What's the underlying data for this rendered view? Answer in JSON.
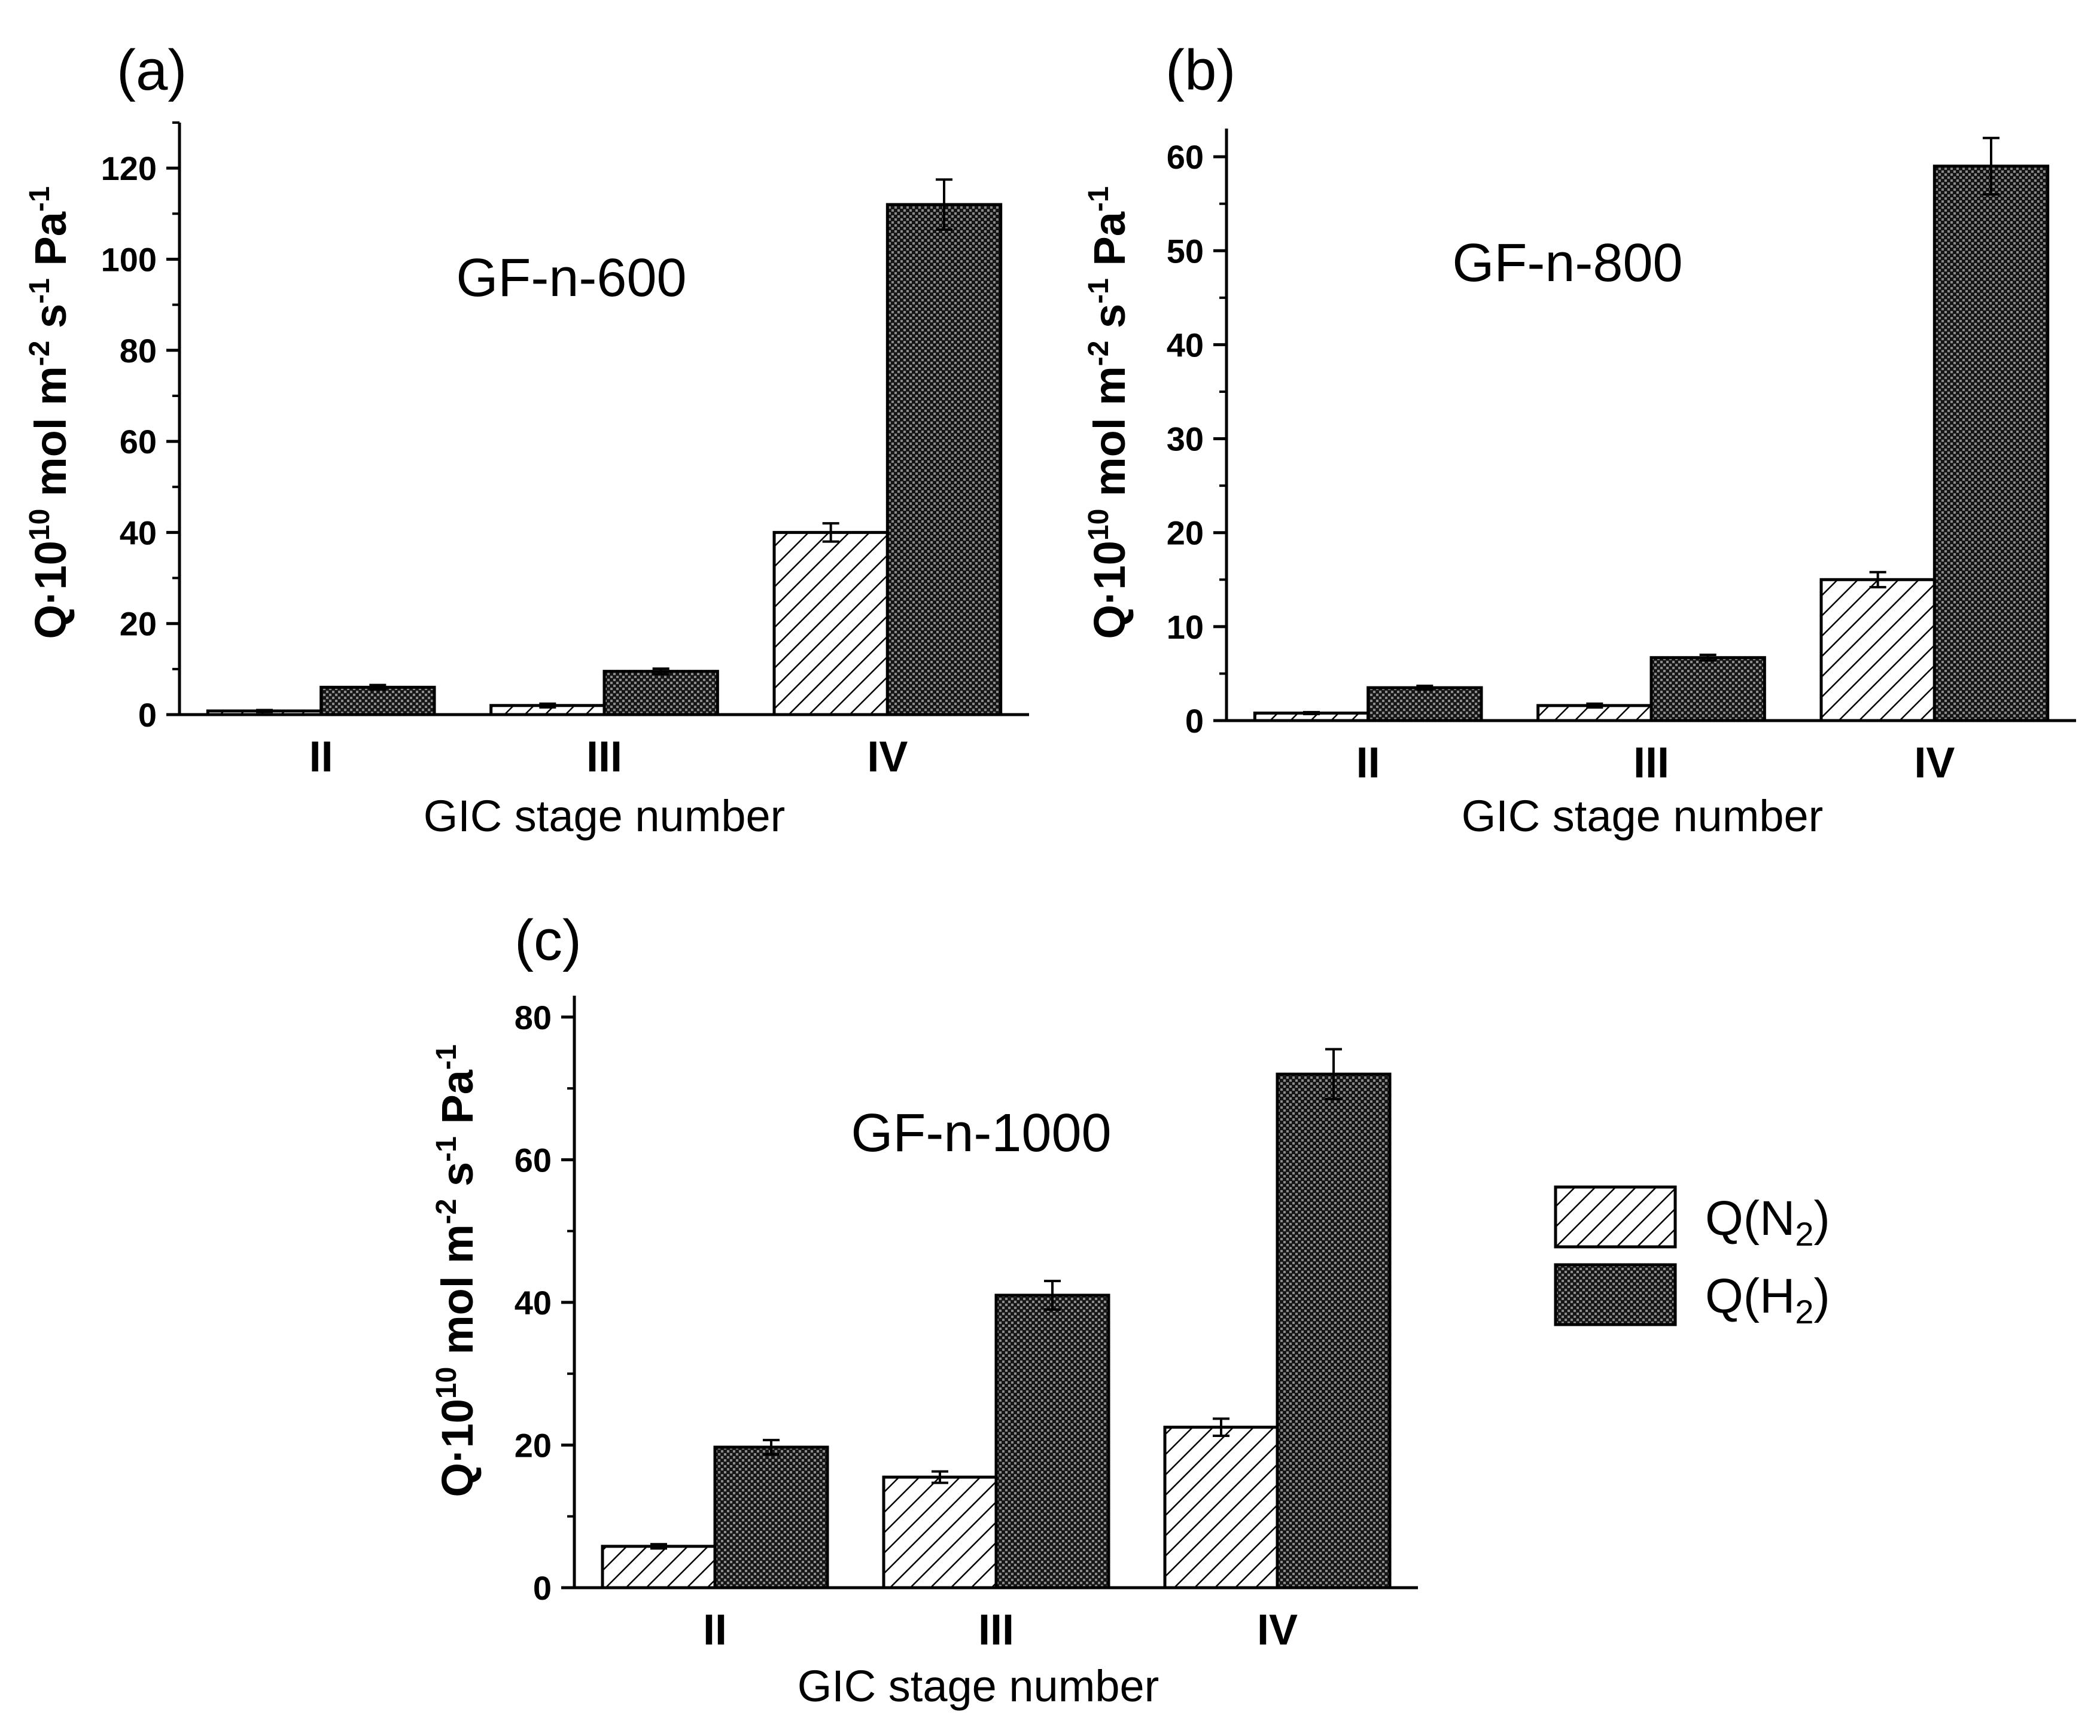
{
  "colors": {
    "n2_fill": "#ffffff",
    "h2_fill": "#1a1a1a",
    "stroke": "#000000"
  },
  "chart_data": [
    {
      "panel": "(a)",
      "type": "bar",
      "title": "GF-n-600",
      "xlabel": "GIC stage number",
      "ylabel": "Q·10^10 mol m^-2 s^-1 Pa^-1",
      "categories": [
        "II",
        "III",
        "IV"
      ],
      "ylim": [
        0,
        130
      ],
      "yticks": [
        0,
        20,
        40,
        60,
        80,
        100,
        120
      ],
      "series": [
        {
          "name": "Q(N2)",
          "values": [
            0.8,
            2,
            40
          ],
          "errors": [
            0.2,
            0.4,
            2
          ]
        },
        {
          "name": "Q(H2)",
          "values": [
            6,
            9.5,
            112
          ],
          "errors": [
            0.5,
            0.6,
            5.5
          ]
        }
      ]
    },
    {
      "panel": "(b)",
      "type": "bar",
      "title": "GF-n-800",
      "xlabel": "GIC stage number",
      "ylabel": "Q·10^10 mol m^-2 s^-1 Pa^-1",
      "categories": [
        "II",
        "III",
        "IV"
      ],
      "ylim": [
        0,
        63
      ],
      "yticks": [
        0,
        10,
        20,
        30,
        40,
        50,
        60
      ],
      "series": [
        {
          "name": "Q(N2)",
          "values": [
            0.8,
            1.6,
            15
          ],
          "errors": [
            0.1,
            0.2,
            0.8
          ]
        },
        {
          "name": "Q(H2)",
          "values": [
            3.5,
            6.7,
            59
          ],
          "errors": [
            0.2,
            0.3,
            3
          ]
        }
      ]
    },
    {
      "panel": "(c)",
      "type": "bar",
      "title": "GF-n-1000",
      "xlabel": "GIC stage number",
      "ylabel": "Q·10^10 mol m^-2 s^-1 Pa^-1",
      "categories": [
        "II",
        "III",
        "IV"
      ],
      "ylim": [
        0,
        83
      ],
      "yticks": [
        0,
        20,
        40,
        60,
        80
      ],
      "series": [
        {
          "name": "Q(N2)",
          "values": [
            5.8,
            15.5,
            22.5
          ],
          "errors": [
            0.3,
            0.8,
            1.2
          ]
        },
        {
          "name": "Q(H2)",
          "values": [
            19.7,
            41,
            72
          ],
          "errors": [
            1,
            2,
            3.5
          ]
        }
      ]
    }
  ],
  "legend": {
    "items": [
      {
        "label": "Q(N",
        "sub": "2",
        "close": ")"
      },
      {
        "label": "Q(H",
        "sub": "2",
        "close": ")"
      }
    ]
  }
}
